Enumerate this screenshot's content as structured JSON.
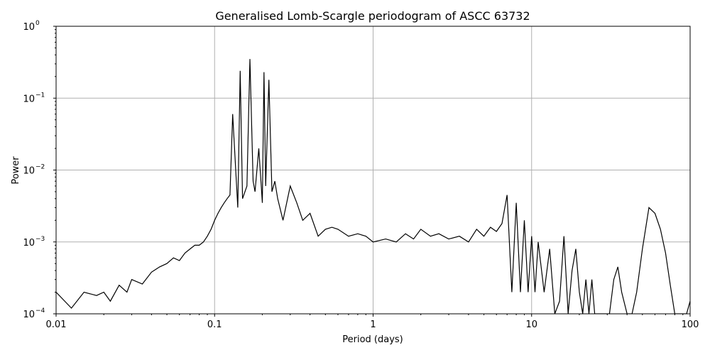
{
  "chart_data": {
    "type": "line",
    "title": "Generalised Lomb-Scargle periodogram of ASCC 63732",
    "xlabel": "Period (days)",
    "ylabel": "Power",
    "xscale": "log",
    "yscale": "log",
    "xlim": [
      0.01,
      100
    ],
    "ylim": [
      0.0001,
      1
    ],
    "grid": true,
    "line_color": "#000000",
    "x_ticks": [
      {
        "value": 0.01,
        "label": "0.01"
      },
      {
        "value": 0.1,
        "label": "0.1"
      },
      {
        "value": 1,
        "label": "1"
      },
      {
        "value": 10,
        "label": "10"
      },
      {
        "value": 100,
        "label": "100"
      }
    ],
    "y_ticks": [
      {
        "value": 0.0001,
        "base": "10",
        "exp": "−4"
      },
      {
        "value": 0.001,
        "base": "10",
        "exp": "−3"
      },
      {
        "value": 0.01,
        "base": "10",
        "exp": "−2"
      },
      {
        "value": 0.1,
        "base": "10",
        "exp": "−1"
      },
      {
        "value": 1,
        "base": "10",
        "exp": "0"
      }
    ],
    "series": [
      {
        "x": [
          0.01,
          0.0125,
          0.015,
          0.018,
          0.02,
          0.022,
          0.025,
          0.028,
          0.03,
          0.035,
          0.04,
          0.045,
          0.05,
          0.055,
          0.06,
          0.065,
          0.07,
          0.075,
          0.08,
          0.085,
          0.09,
          0.095,
          0.1,
          0.105,
          0.11,
          0.115,
          0.12,
          0.125,
          0.13,
          0.14,
          0.145,
          0.15,
          0.16,
          0.167,
          0.175,
          0.18,
          0.19,
          0.2,
          0.205,
          0.21,
          0.22,
          0.23,
          0.24,
          0.25,
          0.27,
          0.3,
          0.33,
          0.36,
          0.4,
          0.45,
          0.5,
          0.55,
          0.6,
          0.7,
          0.8,
          0.9,
          1.0,
          1.2,
          1.4,
          1.6,
          1.8,
          2.0,
          2.3,
          2.6,
          3.0,
          3.5,
          4.0,
          4.5,
          5.0,
          5.5,
          6.0,
          6.5,
          7.0,
          7.5,
          8.0,
          8.5,
          9.0,
          9.5,
          10.0,
          10.5,
          11.0,
          12.0,
          13.0,
          14.0,
          15.0,
          16.0,
          17.0,
          18.0,
          19.0,
          20.0,
          21.0,
          22.0,
          23.0,
          24.0,
          25.0,
          27.0,
          29.0,
          31.0,
          33.0,
          35.0,
          37.0,
          40.0,
          43.0,
          46.0,
          50.0,
          55.0,
          60.0,
          65.0,
          70.0,
          75.0,
          80.0,
          85.0,
          90.0,
          95.0,
          100.0
        ],
        "y": [
          0.0002,
          0.00012,
          0.0002,
          0.00018,
          0.0002,
          0.00015,
          0.00025,
          0.0002,
          0.0003,
          0.00026,
          0.00038,
          0.00045,
          0.0005,
          0.0006,
          0.00055,
          0.0007,
          0.0008,
          0.0009,
          0.0009,
          0.001,
          0.0012,
          0.0015,
          0.002,
          0.0025,
          0.003,
          0.0035,
          0.004,
          0.0045,
          0.06,
          0.003,
          0.24,
          0.004,
          0.006,
          0.35,
          0.007,
          0.005,
          0.02,
          0.0035,
          0.23,
          0.006,
          0.18,
          0.005,
          0.007,
          0.004,
          0.002,
          0.006,
          0.0035,
          0.002,
          0.0025,
          0.0012,
          0.0015,
          0.0016,
          0.0015,
          0.0012,
          0.0013,
          0.0012,
          0.001,
          0.0011,
          0.001,
          0.0013,
          0.0011,
          0.0015,
          0.0012,
          0.0013,
          0.0011,
          0.0012,
          0.001,
          0.0015,
          0.0012,
          0.0016,
          0.0014,
          0.0018,
          0.0045,
          0.0002,
          0.0035,
          0.0002,
          0.002,
          0.0002,
          0.0012,
          0.0002,
          0.001,
          0.0002,
          0.0008,
          0.0001,
          0.00015,
          0.0012,
          0.0001,
          0.0004,
          0.0008,
          0.0002,
          0.0001,
          0.0003,
          0.0001,
          0.0003,
          0.0001,
          0.0001,
          0.0001,
          0.0001,
          0.0003,
          0.00045,
          0.0002,
          0.0001,
          0.0001,
          0.0002,
          0.0008,
          0.003,
          0.0025,
          0.0015,
          0.0007,
          0.00025,
          0.0001,
          0.0001,
          0.0001,
          0.0001,
          0.00015
        ]
      }
    ]
  }
}
